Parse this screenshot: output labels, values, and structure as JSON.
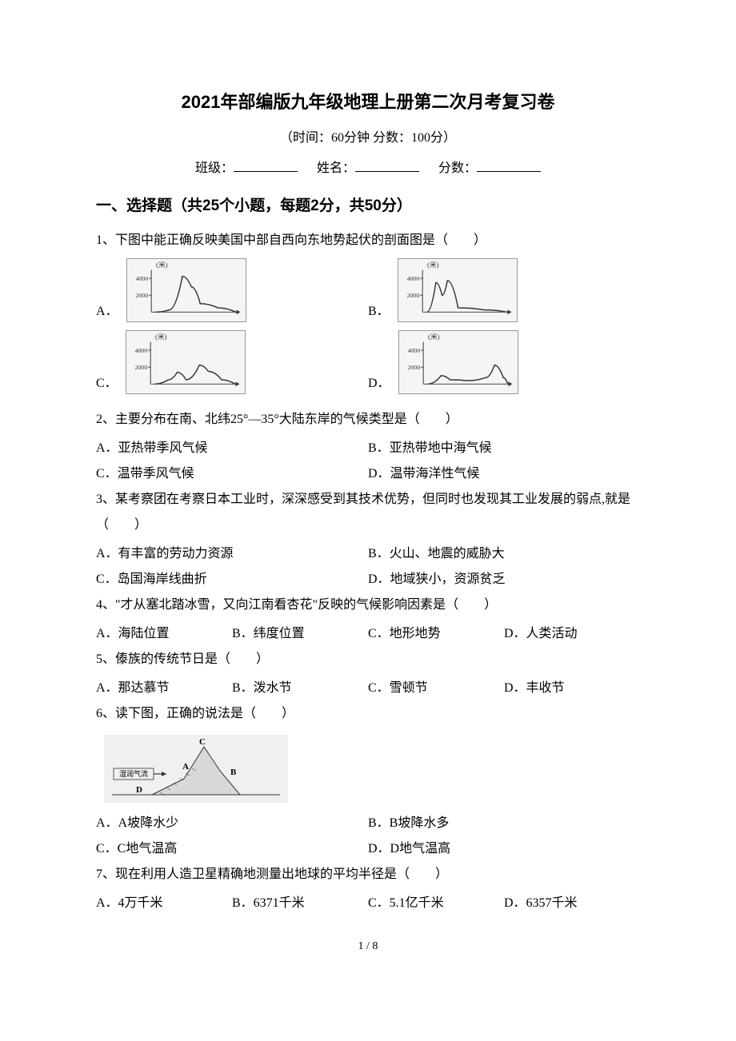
{
  "header": {
    "title": "2021年部编版九年级地理上册第二次月考复习卷",
    "subtitle": "（时间：60分钟   分数：100分）",
    "class_label": "班级：",
    "name_label": "姓名：",
    "score_label": "分数："
  },
  "section1": {
    "header": "一、选择题（共25个小题，每题2分，共50分）"
  },
  "q1": {
    "text": "1、下图中能正确反映美国中部自西向东地势起伏的剖面图是（　　）",
    "optA": "A．",
    "optB": "B．",
    "optC": "C．",
    "optD": "D．",
    "chartA": {
      "x_range": [
        0,
        1
      ],
      "y_ticks": [
        2000,
        4000
      ],
      "y_label": "(米)",
      "line_color": "#333333",
      "grid_border_color": "#999999",
      "background": "#f5f5f5",
      "profile": [
        [
          0.05,
          0
        ],
        [
          0.2,
          0.05
        ],
        [
          0.35,
          0.85
        ],
        [
          0.45,
          0.6
        ],
        [
          0.55,
          0.2
        ],
        [
          0.75,
          0.1
        ],
        [
          0.95,
          0
        ]
      ]
    },
    "chartB": {
      "x_range": [
        0,
        1
      ],
      "y_ticks": [
        2000,
        4000
      ],
      "y_label": "(米)",
      "line_color": "#333333",
      "grid_border_color": "#999999",
      "background": "#f5f5f5",
      "profile": [
        [
          0.05,
          0
        ],
        [
          0.15,
          0.7
        ],
        [
          0.22,
          0.4
        ],
        [
          0.28,
          0.75
        ],
        [
          0.4,
          0.1
        ],
        [
          0.7,
          0.05
        ],
        [
          0.95,
          0
        ]
      ]
    },
    "chartC": {
      "x_range": [
        0,
        1
      ],
      "y_ticks": [
        2000,
        4000
      ],
      "y_label": "(米)",
      "line_color": "#333333",
      "grid_border_color": "#999999",
      "background": "#f5f5f5",
      "profile": [
        [
          0.05,
          0
        ],
        [
          0.2,
          0.1
        ],
        [
          0.3,
          0.28
        ],
        [
          0.4,
          0.1
        ],
        [
          0.55,
          0.45
        ],
        [
          0.65,
          0.3
        ],
        [
          0.8,
          0.1
        ],
        [
          0.95,
          0
        ]
      ]
    },
    "chartD": {
      "x_range": [
        0,
        1
      ],
      "y_ticks": [
        2000,
        4000
      ],
      "y_label": "(米)",
      "line_color": "#333333",
      "grid_border_color": "#999999",
      "background": "#f5f5f5",
      "profile": [
        [
          0.05,
          0
        ],
        [
          0.2,
          0.2
        ],
        [
          0.3,
          0.1
        ],
        [
          0.5,
          0.08
        ],
        [
          0.7,
          0.15
        ],
        [
          0.8,
          0.45
        ],
        [
          0.9,
          0.15
        ],
        [
          0.95,
          0
        ]
      ]
    }
  },
  "q2": {
    "text": "2、主要分布在南、北纬25°—35°大陆东岸的气候类型是（　　）",
    "optA": "A．亚热带季风气候",
    "optB": "B．亚热带地中海气候",
    "optC": "C．温带季风气候",
    "optD": "D．温带海洋性气候"
  },
  "q3": {
    "text": "3、某考察团在考察日本工业时，深深感受到其技术优势，但同时也发现其工业发展的弱点,就是（　　）",
    "optA": "A．有丰富的劳动力资源",
    "optB": "B．火山、地震的威胁大",
    "optC": "C．岛国海岸线曲折",
    "optD": "D．地域狭小，资源贫乏"
  },
  "q4": {
    "text": "4、\"才从塞北踏冰雪，又向江南看杏花\"反映的气候影响因素是（　　）",
    "optA": "A．海陆位置",
    "optB": "B．纬度位置",
    "optC": "C．地形地势",
    "optD": "D．人类活动"
  },
  "q5": {
    "text": "5、傣族的传统节日是（　　）",
    "optA": "A．那达慕节",
    "optB": "B．泼水节",
    "optC": "C．雪顿节",
    "optD": "D．丰收节"
  },
  "q6": {
    "text": "6、读下图，正确的说法是（　　）",
    "optA": "A．A坡降水少",
    "optB": "B．B坡降水多",
    "optC": "C．C地气温高",
    "optD": "D．D地气温高",
    "diagram": {
      "type": "mountain-cross-section",
      "labels": {
        "C": "top",
        "A": "left-slope",
        "B": "right-slope",
        "D": "left-base"
      },
      "arrow_label": "湿润气流",
      "arrow_direction": "right",
      "fill_color": "#d8d8d8",
      "line_color": "#333333"
    }
  },
  "q7": {
    "text": "7、现在利用人造卫星精确地测量出地球的平均半径是（　　）",
    "optA": "A．4万千米",
    "optB": "B．6371千米",
    "optC": "C．5.1亿千米",
    "optD": "D．6357千米"
  },
  "page_number": "1 / 8"
}
